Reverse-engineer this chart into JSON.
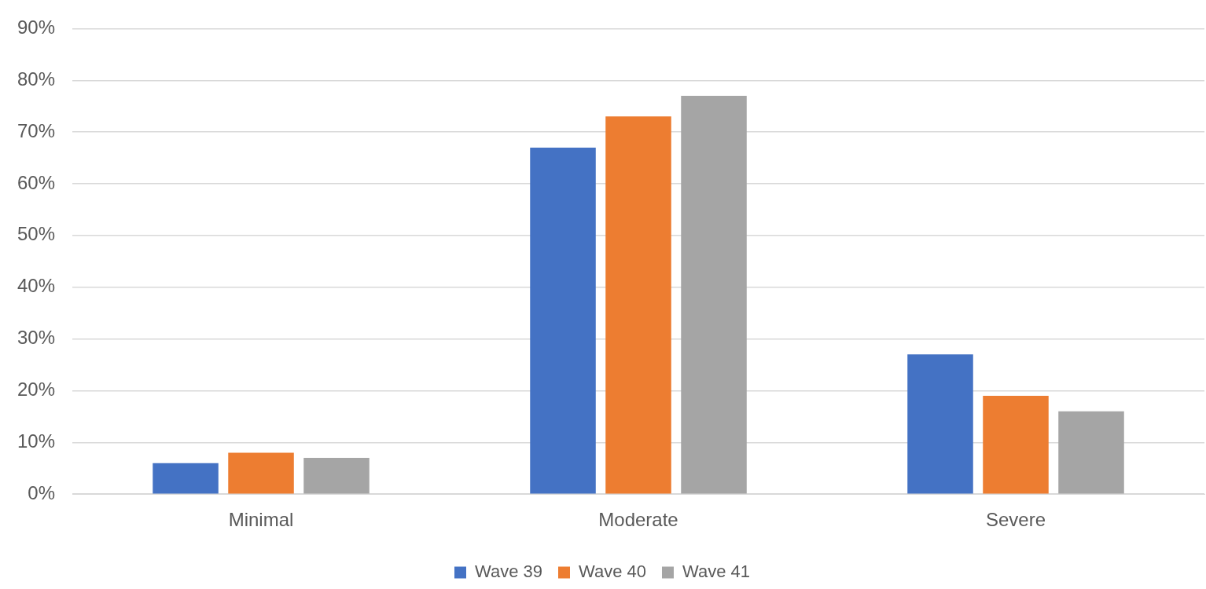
{
  "chart_data": {
    "type": "bar",
    "categories": [
      "Minimal",
      "Moderate",
      "Severe"
    ],
    "series": [
      {
        "name": "Wave 39",
        "color": "#4472c4",
        "values": [
          6,
          67,
          27
        ]
      },
      {
        "name": "Wave 40",
        "color": "#ed7d31",
        "values": [
          8,
          73,
          19
        ]
      },
      {
        "name": "Wave 41",
        "color": "#a5a5a5",
        "values": [
          7,
          77,
          16
        ]
      }
    ],
    "ylim": [
      0,
      90
    ],
    "yticks": [
      {
        "value": 0,
        "label": "0%"
      },
      {
        "value": 10,
        "label": "10%"
      },
      {
        "value": 20,
        "label": "20%"
      },
      {
        "value": 30,
        "label": "30%"
      },
      {
        "value": 40,
        "label": "40%"
      },
      {
        "value": 50,
        "label": "50%"
      },
      {
        "value": 60,
        "label": "60%"
      },
      {
        "value": 70,
        "label": "70%"
      },
      {
        "value": 80,
        "label": "80%"
      },
      {
        "value": 90,
        "label": "90%"
      }
    ],
    "grid": "y",
    "legend": "bottom"
  }
}
